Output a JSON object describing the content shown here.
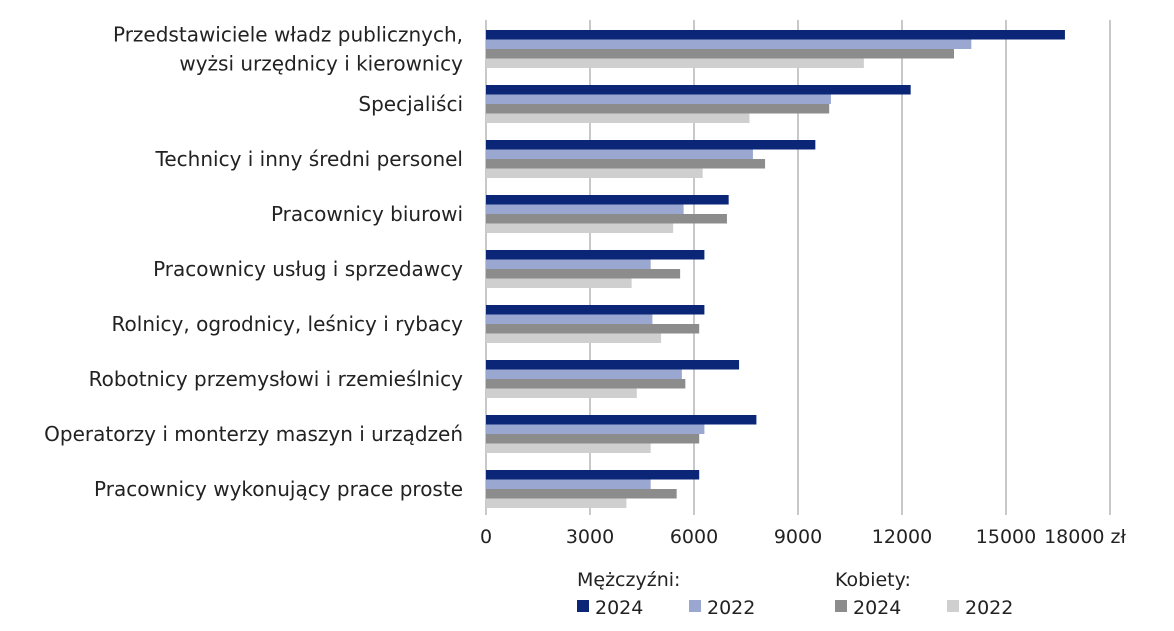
{
  "chart_data": {
    "type": "bar",
    "orientation": "horizontal",
    "categories": [
      [
        "Przedstawiciele władz publicznych,",
        "wyżsi urzędnicy i kierownicy"
      ],
      [
        "Specjaliści"
      ],
      [
        "Technicy i inny średni personel"
      ],
      [
        "Pracownicy biurowi"
      ],
      [
        "Pracownicy usług i sprzedawcy"
      ],
      [
        "Rolnicy, ogrodnicy, leśnicy i rybacy"
      ],
      [
        "Robotnicy przemysłowi i rzemieślnicy"
      ],
      [
        "Operatorzy i monterzy maszyn i urządzeń"
      ],
      [
        "Pracownicy wykonujący prace proste"
      ]
    ],
    "series": [
      {
        "group": "Mężczyźni",
        "name": "2024",
        "color": "#0b2677",
        "values": [
          16700,
          12250,
          9500,
          7000,
          6300,
          6300,
          7300,
          7800,
          6150
        ]
      },
      {
        "group": "Mężczyźni",
        "name": "2022",
        "color": "#9aa8d1",
        "values": [
          14000,
          9950,
          7700,
          5700,
          4750,
          4800,
          5650,
          6300,
          4750
        ]
      },
      {
        "group": "Kobiety",
        "name": "2024",
        "color": "#8c8c8c",
        "values": [
          13500,
          9900,
          8050,
          6950,
          5600,
          6150,
          5750,
          6150,
          5500
        ]
      },
      {
        "group": "Kobiety",
        "name": "2022",
        "color": "#cfcfcf",
        "values": [
          10900,
          7600,
          6250,
          5400,
          4200,
          5050,
          4350,
          4750,
          4050
        ]
      }
    ],
    "xlim": [
      0,
      18000
    ],
    "xticks": [
      "0",
      "3000",
      "6000",
      "9000",
      "12000",
      "15000",
      "18000 zł"
    ],
    "grid": true,
    "legend": {
      "placement": "bottom",
      "groups": [
        {
          "title": "Mężczyźni:",
          "items": [
            "2024",
            "2022"
          ]
        },
        {
          "title": "Kobiety:",
          "items": [
            "2024",
            "2022"
          ]
        }
      ]
    },
    "title": "",
    "xlabel": "",
    "ylabel": ""
  }
}
